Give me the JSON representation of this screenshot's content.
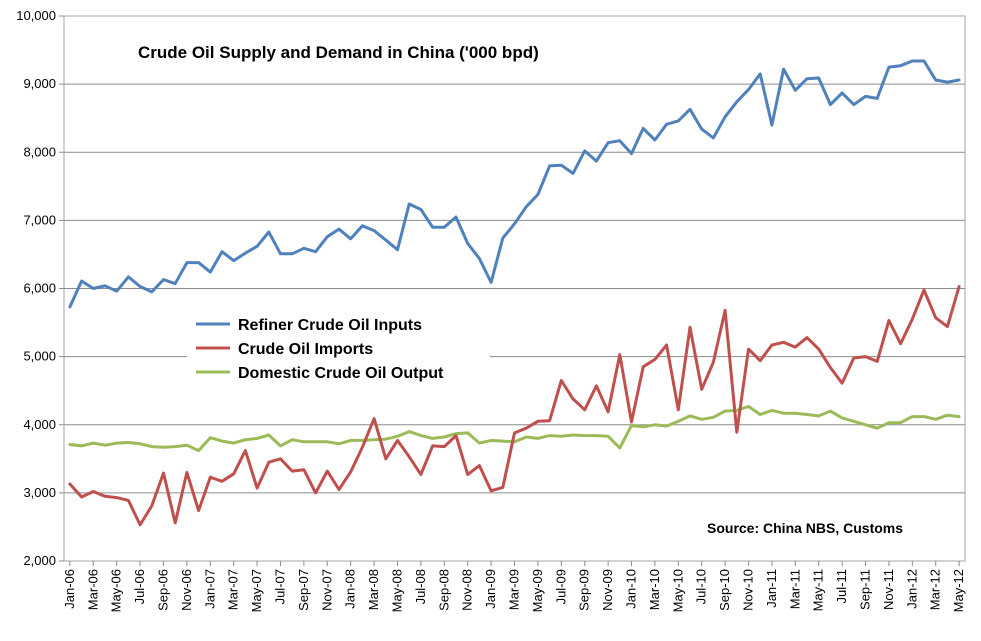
{
  "chart_data": {
    "type": "line",
    "title": "Crude Oil Supply and Demand in China ('000 bpd)",
    "source": "Source: China NBS, Customs",
    "xlabel": "",
    "ylabel": "",
    "ylim": [
      2000,
      10000
    ],
    "yticks": [
      2000,
      3000,
      4000,
      5000,
      6000,
      7000,
      8000,
      9000,
      10000
    ],
    "ytick_labels": [
      "2,000",
      "3,000",
      "4,000",
      "5,000",
      "6,000",
      "7,000",
      "8,000",
      "9,000",
      "10,000"
    ],
    "grid": true,
    "legend_position": "middle-left",
    "tick_labels": [
      "Jan-06",
      "Mar-06",
      "May-06",
      "Jul-06",
      "Sep-06",
      "Nov-06",
      "Jan-07",
      "Mar-07",
      "May-07",
      "Jul-07",
      "Sep-07",
      "Nov-07",
      "Jan-08",
      "Mar-08",
      "May-08",
      "Jul-08",
      "Sep-08",
      "Nov-08",
      "Jan-09",
      "Mar-09",
      "May-09",
      "Jul-09",
      "Sep-09",
      "Nov-09",
      "Jan-10",
      "Mar-10",
      "May-10",
      "Jul-10",
      "Sep-10",
      "Nov-10",
      "Jan-11",
      "Mar-11",
      "May-11",
      "Jul-11",
      "Sep-11",
      "Nov-11",
      "Jan-12",
      "Mar-12",
      "May-12"
    ],
    "categories": [
      "Jan-06",
      "Feb-06",
      "Mar-06",
      "Apr-06",
      "May-06",
      "Jun-06",
      "Jul-06",
      "Aug-06",
      "Sep-06",
      "Oct-06",
      "Nov-06",
      "Dec-06",
      "Jan-07",
      "Feb-07",
      "Mar-07",
      "Apr-07",
      "May-07",
      "Jun-07",
      "Jul-07",
      "Aug-07",
      "Sep-07",
      "Oct-07",
      "Nov-07",
      "Dec-07",
      "Jan-08",
      "Feb-08",
      "Mar-08",
      "Apr-08",
      "May-08",
      "Jun-08",
      "Jul-08",
      "Aug-08",
      "Sep-08",
      "Oct-08",
      "Nov-08",
      "Dec-08",
      "Jan-09",
      "Feb-09",
      "Mar-09",
      "Apr-09",
      "May-09",
      "Jun-09",
      "Jul-09",
      "Aug-09",
      "Sep-09",
      "Oct-09",
      "Nov-09",
      "Dec-09",
      "Jan-10",
      "Feb-10",
      "Mar-10",
      "Apr-10",
      "May-10",
      "Jun-10",
      "Jul-10",
      "Aug-10",
      "Sep-10",
      "Oct-10",
      "Nov-10",
      "Dec-10",
      "Jan-11",
      "Feb-11",
      "Mar-11",
      "Apr-11",
      "May-11",
      "Jun-11",
      "Jul-11",
      "Aug-11",
      "Sep-11",
      "Oct-11",
      "Nov-11",
      "Dec-11",
      "Jan-12",
      "Feb-12",
      "Mar-12",
      "Apr-12",
      "May-12"
    ],
    "series": [
      {
        "name": "Refiner Crude Oil Inputs",
        "color": "#4F81BD",
        "values": [
          5730,
          6110,
          6000,
          6040,
          5960,
          6170,
          6030,
          5950,
          6130,
          6070,
          6380,
          6380,
          6240,
          6540,
          6410,
          6520,
          6620,
          6830,
          6510,
          6510,
          6590,
          6540,
          6760,
          6870,
          6730,
          6920,
          6850,
          6710,
          6570,
          7240,
          7160,
          6900,
          6900,
          7050,
          6660,
          6440,
          6090,
          6740,
          6950,
          7200,
          7380,
          7800,
          7810,
          7690,
          8020,
          7870,
          8140,
          8170,
          7980,
          8350,
          8180,
          8410,
          8460,
          8630,
          8340,
          8210,
          8520,
          8740,
          8920,
          9150,
          8400,
          9220,
          8910,
          9080,
          9090,
          8700,
          8870,
          8700,
          8820,
          8790,
          9250,
          9270,
          9340,
          9340,
          9060,
          9030,
          9060
        ]
      },
      {
        "name": "Crude Oil Imports",
        "color": "#C0504D",
        "values": [
          3130,
          2940,
          3020,
          2950,
          2930,
          2890,
          2530,
          2810,
          3290,
          2560,
          3300,
          2740,
          3230,
          3170,
          3280,
          3620,
          3070,
          3450,
          3500,
          3320,
          3340,
          3000,
          3320,
          3050,
          3310,
          3670,
          4090,
          3500,
          3770,
          3530,
          3270,
          3690,
          3680,
          3840,
          3270,
          3400,
          3030,
          3080,
          3880,
          3950,
          4050,
          4060,
          4650,
          4380,
          4220,
          4570,
          4190,
          5030,
          4040,
          4850,
          4960,
          5170,
          4220,
          5430,
          4520,
          4920,
          5680,
          3890,
          5110,
          4940,
          5170,
          5210,
          5140,
          5280,
          5110,
          4840,
          4610,
          4980,
          5000,
          4930,
          5530,
          5190,
          5550,
          5980,
          5570,
          5440,
          6030
        ]
      },
      {
        "name": "Domestic Crude Oil Output",
        "color": "#9BBB59",
        "values": [
          3710,
          3690,
          3730,
          3700,
          3730,
          3740,
          3720,
          3680,
          3670,
          3680,
          3700,
          3620,
          3810,
          3760,
          3730,
          3780,
          3800,
          3850,
          3690,
          3780,
          3750,
          3750,
          3750,
          3720,
          3770,
          3770,
          3780,
          3790,
          3830,
          3900,
          3840,
          3800,
          3820,
          3870,
          3880,
          3730,
          3770,
          3760,
          3750,
          3820,
          3800,
          3840,
          3830,
          3850,
          3840,
          3840,
          3830,
          3660,
          3990,
          3970,
          4000,
          3980,
          4050,
          4130,
          4080,
          4110,
          4200,
          4210,
          4270,
          4150,
          4210,
          4170,
          4170,
          4150,
          4130,
          4200,
          4100,
          4050,
          4000,
          3950,
          4030,
          4030,
          4120,
          4120,
          4080,
          4140,
          4120
        ]
      }
    ]
  }
}
